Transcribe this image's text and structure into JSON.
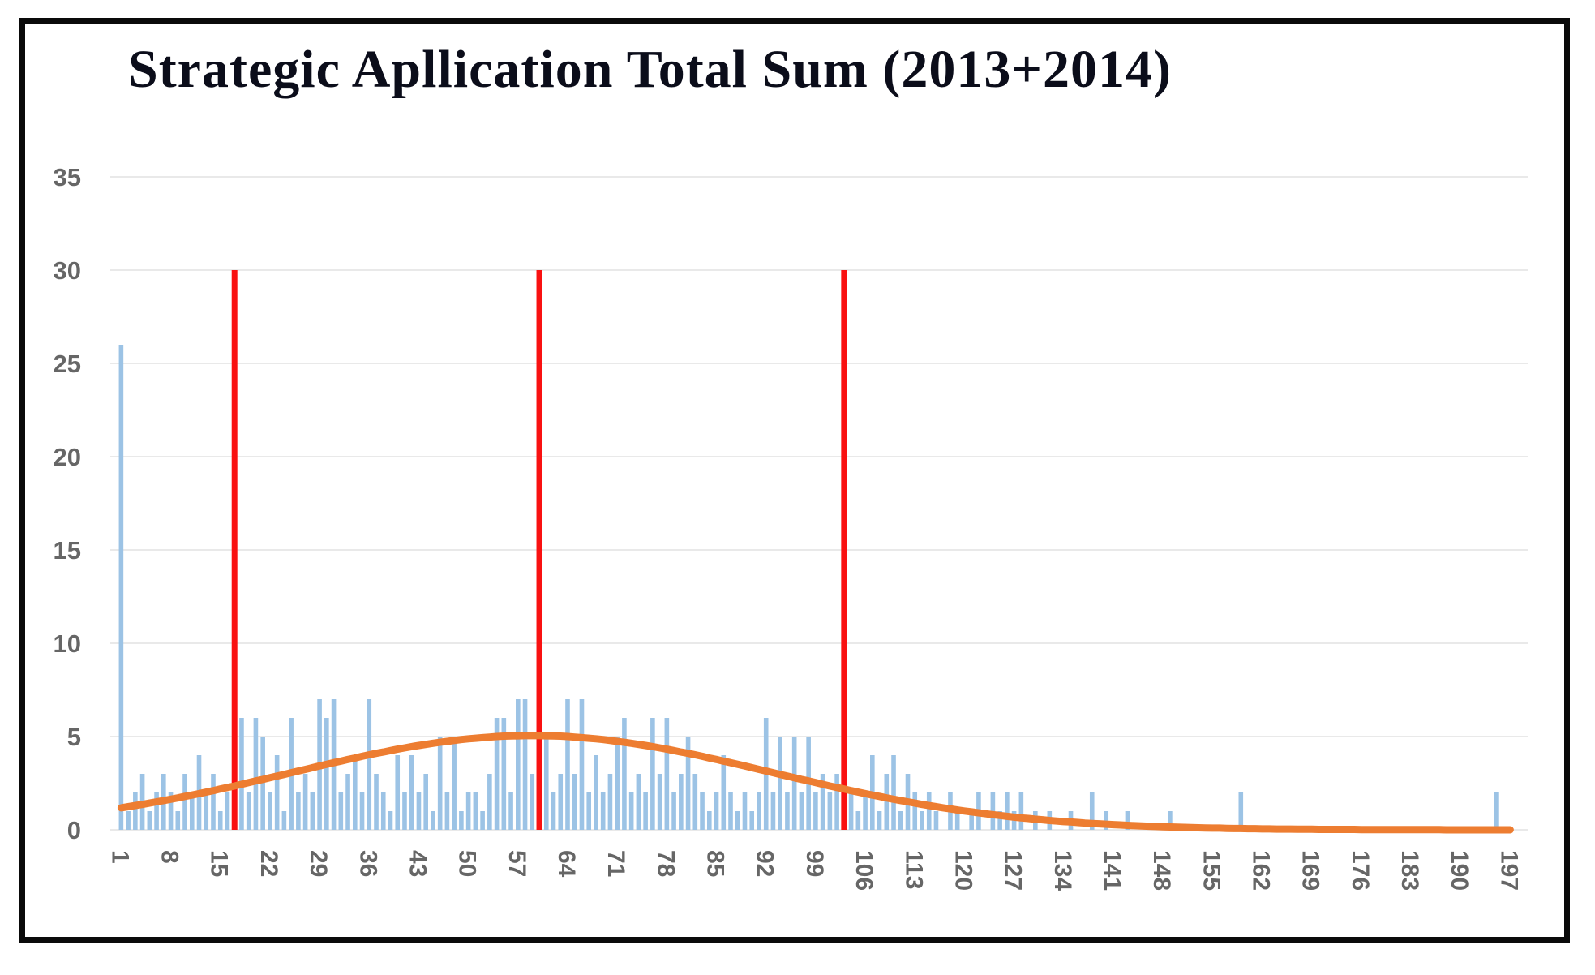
{
  "title": "Strategic Apllication Total Sum (2013+2014)",
  "colors": {
    "bar": "#9CC3E5",
    "curve": "#ED7D31",
    "marker_line": "#F91111",
    "grid": "#E9E9E9",
    "tick_text": "#666666",
    "title_text": "#0B0D1A",
    "frame": "#0A0A0A",
    "background": "#FFFFFF"
  },
  "chart_data": {
    "type": "bar",
    "title": "Strategic Apllication Total Sum (2013+2014)",
    "xlabel": "",
    "ylabel": "",
    "n_categories": 197,
    "x_first_category": 1,
    "x_tick_step": 7,
    "x_tick_labels": [
      "1",
      "8",
      "15",
      "22",
      "29",
      "36",
      "43",
      "50",
      "57",
      "64",
      "71",
      "78",
      "85",
      "92",
      "99",
      "106",
      "113",
      "120",
      "127",
      "134",
      "141",
      "148",
      "155",
      "162",
      "169",
      "176",
      "183",
      "190",
      "197"
    ],
    "y_ticks": [
      0,
      5,
      10,
      15,
      20,
      25,
      30,
      35
    ],
    "ylim": [
      0,
      35
    ],
    "grid": true,
    "legend": "none",
    "marker_lines_x": [
      17,
      60,
      103
    ],
    "marker_line_ymax": 30,
    "series": [
      {
        "name": "frequency-bars",
        "type": "bar",
        "values": [
          26,
          1,
          2,
          3,
          1,
          2,
          3,
          2,
          1,
          3,
          2,
          4,
          2,
          3,
          1,
          2,
          3,
          6,
          2,
          6,
          5,
          2,
          4,
          1,
          6,
          2,
          3,
          2,
          7,
          6,
          7,
          2,
          3,
          4,
          2,
          7,
          3,
          2,
          1,
          4,
          2,
          4,
          2,
          3,
          1,
          5,
          2,
          5,
          1,
          2,
          2,
          1,
          3,
          6,
          6,
          2,
          7,
          7,
          3,
          5,
          5,
          2,
          3,
          7,
          3,
          7,
          2,
          4,
          2,
          3,
          5,
          6,
          2,
          3,
          2,
          6,
          3,
          6,
          2,
          3,
          5,
          3,
          2,
          1,
          2,
          4,
          2,
          1,
          2,
          1,
          2,
          6,
          2,
          5,
          2,
          5,
          2,
          5,
          2,
          3,
          2,
          3,
          1,
          2,
          1,
          2,
          4,
          1,
          3,
          4,
          1,
          3,
          2,
          1,
          2,
          1,
          0,
          2,
          1,
          0,
          1,
          2,
          0,
          2,
          1,
          2,
          1,
          2,
          0,
          1,
          0,
          1,
          0,
          0,
          1,
          0,
          0,
          2,
          0,
          1,
          0,
          0,
          1,
          0,
          0,
          0,
          0,
          0,
          1,
          0,
          0,
          0,
          0,
          0,
          0,
          0,
          0,
          0,
          2,
          0,
          0,
          0,
          0,
          0,
          0,
          0,
          0,
          0,
          0,
          0,
          0,
          0,
          0,
          0,
          0,
          0,
          0,
          0,
          0,
          0,
          0,
          0,
          0,
          0,
          0,
          0,
          0,
          0,
          0,
          0,
          0,
          0,
          0,
          0,
          2,
          0,
          0
        ]
      },
      {
        "name": "normal-distribution-curve",
        "type": "line",
        "values": [
          1.18,
          1.24,
          1.3,
          1.36,
          1.43,
          1.5,
          1.57,
          1.64,
          1.71,
          1.79,
          1.86,
          1.94,
          2.02,
          2.1,
          2.19,
          2.27,
          2.35,
          2.44,
          2.53,
          2.62,
          2.7,
          2.79,
          2.88,
          2.97,
          3.06,
          3.15,
          3.24,
          3.33,
          3.42,
          3.51,
          3.6,
          3.68,
          3.77,
          3.85,
          3.94,
          4.02,
          4.1,
          4.17,
          4.25,
          4.32,
          4.39,
          4.46,
          4.52,
          4.58,
          4.64,
          4.69,
          4.74,
          4.79,
          4.84,
          4.88,
          4.91,
          4.94,
          4.97,
          5.0,
          5.02,
          5.03,
          5.04,
          5.05,
          5.05,
          5.05,
          5.04,
          5.03,
          5.02,
          5.0,
          4.97,
          4.94,
          4.91,
          4.88,
          4.84,
          4.79,
          4.74,
          4.69,
          4.64,
          4.58,
          4.52,
          4.46,
          4.39,
          4.32,
          4.25,
          4.17,
          4.1,
          4.02,
          3.94,
          3.85,
          3.77,
          3.68,
          3.6,
          3.51,
          3.42,
          3.33,
          3.24,
          3.15,
          3.06,
          2.97,
          2.88,
          2.79,
          2.7,
          2.62,
          2.53,
          2.44,
          2.35,
          2.27,
          2.19,
          2.1,
          2.02,
          1.94,
          1.86,
          1.79,
          1.71,
          1.64,
          1.57,
          1.5,
          1.43,
          1.36,
          1.3,
          1.24,
          1.18,
          1.12,
          1.06,
          1.01,
          0.96,
          0.91,
          0.86,
          0.81,
          0.77,
          0.72,
          0.68,
          0.64,
          0.61,
          0.57,
          0.54,
          0.5,
          0.47,
          0.44,
          0.42,
          0.39,
          0.36,
          0.34,
          0.32,
          0.3,
          0.28,
          0.26,
          0.24,
          0.22,
          0.21,
          0.19,
          0.18,
          0.16,
          0.15,
          0.14,
          0.13,
          0.12,
          0.11,
          0.1,
          0.09,
          0.09,
          0.08,
          0.07,
          0.07,
          0.06,
          0.06,
          0.05,
          0.05,
          0.04,
          0.04,
          0.04,
          0.03,
          0.03,
          0.03,
          0.02,
          0.02,
          0.02,
          0.02,
          0.02,
          0.02,
          0.01,
          0.01,
          0.01,
          0.01,
          0.01,
          0.01,
          0.01,
          0.01,
          0.01,
          0.01,
          0.01,
          0.01,
          0.0,
          0.0,
          0.0,
          0.0,
          0.0,
          0.0,
          0.0,
          0.0,
          0.0,
          0.0
        ]
      }
    ]
  }
}
